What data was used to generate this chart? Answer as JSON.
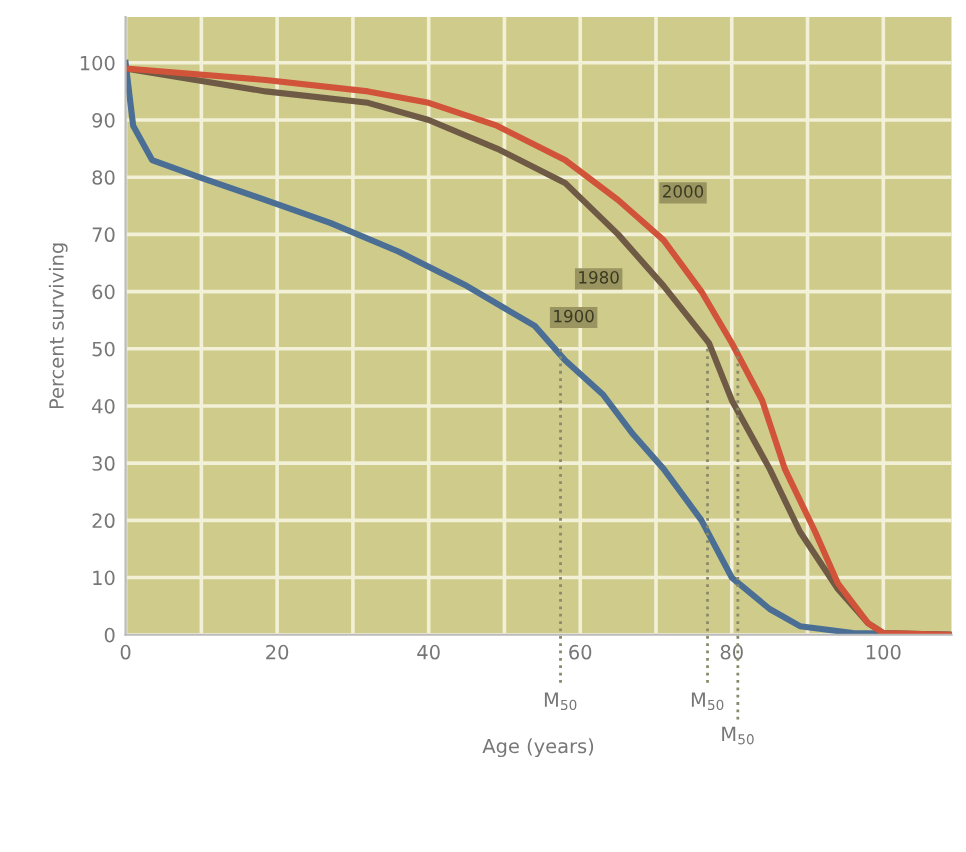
{
  "chart_data": {
    "type": "line",
    "xlabel": "Age (years)",
    "ylabel": "Percent surviving",
    "xlim": [
      0,
      109
    ],
    "ylim": [
      0,
      108
    ],
    "xticks": [
      0,
      20,
      40,
      60,
      80,
      100
    ],
    "yticks": [
      0,
      10,
      20,
      30,
      40,
      50,
      60,
      70,
      80,
      90,
      100
    ],
    "grid": true,
    "marker": "none",
    "line_style": "solid",
    "series": [
      {
        "name": "1900",
        "color": "#4a6e94",
        "x": [
          0,
          1,
          3.5,
          9.7,
          18.5,
          27,
          36,
          45,
          54,
          58,
          63,
          67,
          71,
          76,
          80,
          85,
          89,
          96,
          109
        ],
        "values": [
          100,
          89,
          83,
          80,
          76,
          72,
          67,
          61,
          54,
          48,
          42,
          35,
          29,
          20,
          10,
          4.5,
          1.5,
          0.3,
          0
        ]
      },
      {
        "name": "1980",
        "color": "#6e5a45",
        "x": [
          0,
          18.5,
          32,
          40,
          49,
          58,
          65,
          71,
          77,
          80,
          85,
          89,
          94,
          98,
          100,
          109
        ],
        "values": [
          99,
          95,
          93,
          90,
          85,
          79,
          70,
          61,
          51,
          41,
          29,
          18,
          8,
          2,
          0.3,
          0
        ]
      },
      {
        "name": "2000",
        "color": "#d0533a",
        "x": [
          0,
          18.5,
          32,
          40,
          49,
          58,
          65,
          71,
          76,
          80,
          84,
          87,
          91,
          94,
          98,
          100,
          109
        ],
        "values": [
          99,
          97,
          95,
          93,
          89,
          83,
          76,
          69,
          60,
          51,
          41,
          29,
          18,
          9,
          2,
          0.3,
          0
        ]
      }
    ],
    "ref_lines": [
      {
        "axis": "x",
        "value": 57.4,
        "label": "M$_{50}$",
        "line_style": "dotted"
      },
      {
        "axis": "x",
        "value": 76.8,
        "label": "M$_{50}$",
        "line_style": "dotted"
      },
      {
        "axis": "x",
        "value": 80.8,
        "label": "M$_{50}$",
        "line_style": "dotted"
      }
    ]
  }
}
